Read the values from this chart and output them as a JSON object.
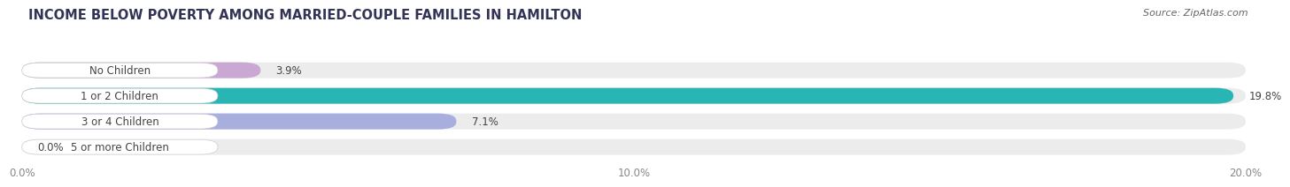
{
  "title": "INCOME BELOW POVERTY AMONG MARRIED-COUPLE FAMILIES IN HAMILTON",
  "source": "Source: ZipAtlas.com",
  "categories": [
    "No Children",
    "1 or 2 Children",
    "3 or 4 Children",
    "5 or more Children"
  ],
  "values": [
    3.9,
    19.8,
    7.1,
    0.0
  ],
  "bar_colors": [
    "#c9a8d4",
    "#2ab5b5",
    "#a8aede",
    "#f5aac0"
  ],
  "background_color": "#ffffff",
  "bar_bg_color": "#ececec",
  "xlim": [
    0,
    20.0
  ],
  "xticks": [
    0.0,
    10.0,
    20.0
  ],
  "xticklabels": [
    "0.0%",
    "10.0%",
    "20.0%"
  ],
  "title_fontsize": 10.5,
  "label_fontsize": 8.5,
  "value_fontsize": 8.5,
  "source_fontsize": 8.0,
  "bar_height": 0.62,
  "label_color": "#444444",
  "grid_color": "#ffffff",
  "title_color": "#333355"
}
